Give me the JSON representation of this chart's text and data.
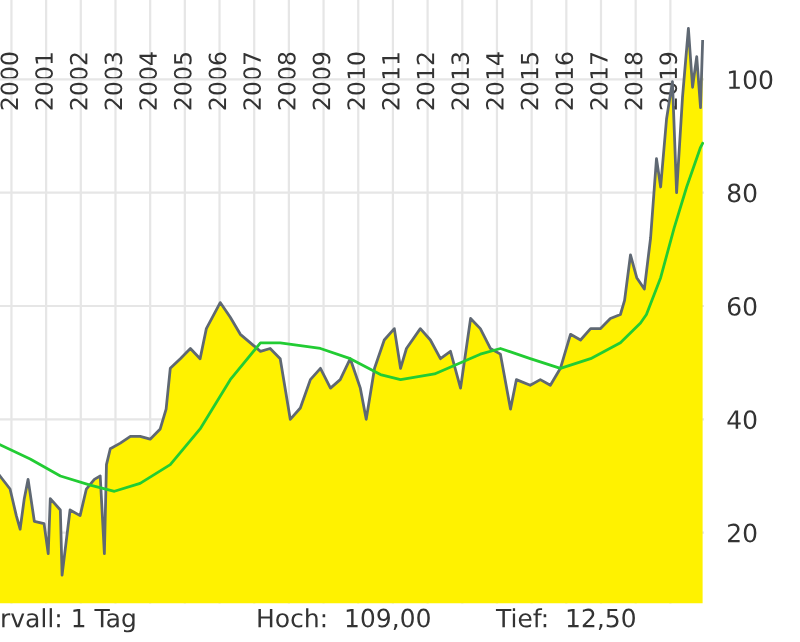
{
  "chart_data": {
    "type": "area",
    "series": [
      {
        "color": "#fff200",
        "x": [
          2000.17,
          2000.46,
          2000.64,
          2000.75,
          2000.87,
          2000.98,
          2001.16,
          2001.44,
          2001.56,
          2001.62,
          2001.91,
          2001.96,
          2002.19,
          2002.48,
          2002.66,
          2002.89,
          2003.06,
          2003.18,
          2003.24,
          2003.35,
          2003.64,
          2003.93,
          2004.21,
          2004.5,
          2004.79,
          2004.96,
          2005.08,
          2005.37,
          2005.66,
          2005.94,
          2006.12,
          2006.52,
          2006.81,
          2007.1,
          2007.68,
          2007.96,
          2008.25,
          2008.54,
          2008.83,
          2009.12,
          2009.41,
          2009.7,
          2009.98,
          2010.27,
          2010.56,
          2010.73,
          2010.97,
          2011.25,
          2011.54,
          2011.72,
          2011.89,
          2012.29,
          2012.58,
          2012.87,
          2013.16,
          2013.45,
          2013.74,
          2014.02,
          2014.31,
          2014.6,
          2014.89,
          2015.06,
          2015.46,
          2015.75,
          2016.04,
          2016.33,
          2016.62,
          2016.91,
          2017.2,
          2017.48,
          2017.77,
          2018.06,
          2018.18,
          2018.35,
          2018.53,
          2018.75,
          2018.93,
          2019.1,
          2019.22,
          2019.39,
          2019.56,
          2019.68,
          2019.85,
          2020.02,
          2020.14,
          2020.26,
          2020.37,
          2020.43
        ],
        "values": [
          30,
          27.7,
          23,
          20.6,
          26,
          29.4,
          22,
          21.6,
          16.3,
          26,
          24,
          12.5,
          24,
          23,
          27.7,
          29.4,
          30,
          16.3,
          32,
          34.8,
          35.8,
          37,
          37,
          36.5,
          38.3,
          41.8,
          49,
          50.7,
          52.5,
          50.7,
          56,
          60.6,
          58,
          55,
          52,
          52.5,
          50.7,
          40,
          42,
          47,
          49,
          45.5,
          47,
          50.7,
          45.5,
          40,
          49,
          54,
          56,
          49,
          52.5,
          56,
          54,
          50.7,
          52,
          45.5,
          57.8,
          56,
          52.5,
          51.5,
          41.8,
          47,
          46,
          47,
          46,
          49,
          55,
          54,
          56,
          56,
          57.8,
          58.5,
          61,
          69,
          65,
          63,
          72,
          86,
          81,
          93,
          99.6,
          80,
          96.8,
          109,
          98.6,
          104,
          95,
          106.7
        ]
      },
      {
        "type": "line",
        "color": "#22cc33",
        "x": [
          2000.17,
          2001.04,
          2001.91,
          2002.77,
          2003.47,
          2004.21,
          2005.08,
          2005.94,
          2006.81,
          2007.68,
          2008.25,
          2009.41,
          2010.27,
          2011.14,
          2011.72,
          2012.7,
          2014.02,
          2014.6,
          2015.46,
          2016.33,
          2017.2,
          2018.06,
          2018.64,
          2018.81,
          2019.22,
          2019.61,
          2019.97,
          2020.37,
          2020.43
        ],
        "values": [
          35.5,
          33,
          30,
          28.4,
          27.3,
          28.7,
          32,
          38.3,
          47,
          53.5,
          53.5,
          52.5,
          50.7,
          47.9,
          47,
          48,
          51.5,
          52.5,
          50.7,
          49,
          50.7,
          53.5,
          57,
          58.5,
          65,
          73.8,
          81,
          88,
          88.7
        ]
      }
    ],
    "xlim": [
      2000.17,
      2020.47
    ],
    "ylim": [
      7.5,
      114
    ],
    "xticks": [
      {
        "value": 2000.5,
        "label": "2000"
      },
      {
        "value": 2001.5,
        "label": "2001"
      },
      {
        "value": 2002.5,
        "label": "2002"
      },
      {
        "value": 2003.5,
        "label": "2003"
      },
      {
        "value": 2004.5,
        "label": "2004"
      },
      {
        "value": 2005.5,
        "label": "2005"
      },
      {
        "value": 2006.5,
        "label": "2006"
      },
      {
        "value": 2007.5,
        "label": "2007"
      },
      {
        "value": 2008.5,
        "label": "2008"
      },
      {
        "value": 2009.5,
        "label": "2009"
      },
      {
        "value": 2010.5,
        "label": "2010"
      },
      {
        "value": 2011.5,
        "label": "2011"
      },
      {
        "value": 2012.5,
        "label": "2012"
      },
      {
        "value": 2013.5,
        "label": "2013"
      },
      {
        "value": 2014.5,
        "label": "2014"
      },
      {
        "value": 2015.5,
        "label": "2015"
      },
      {
        "value": 2016.5,
        "label": "2016"
      },
      {
        "value": 2017.5,
        "label": "2017"
      },
      {
        "value": 2018.5,
        "label": "2018"
      },
      {
        "value": 2019.5,
        "label": "2019"
      }
    ],
    "yticks": [
      20,
      40,
      60,
      80,
      100
    ],
    "grid": true,
    "annotations": [
      "rvall: 1 Tag",
      "Hoch:  109,00",
      "Tief:  12,50"
    ]
  }
}
